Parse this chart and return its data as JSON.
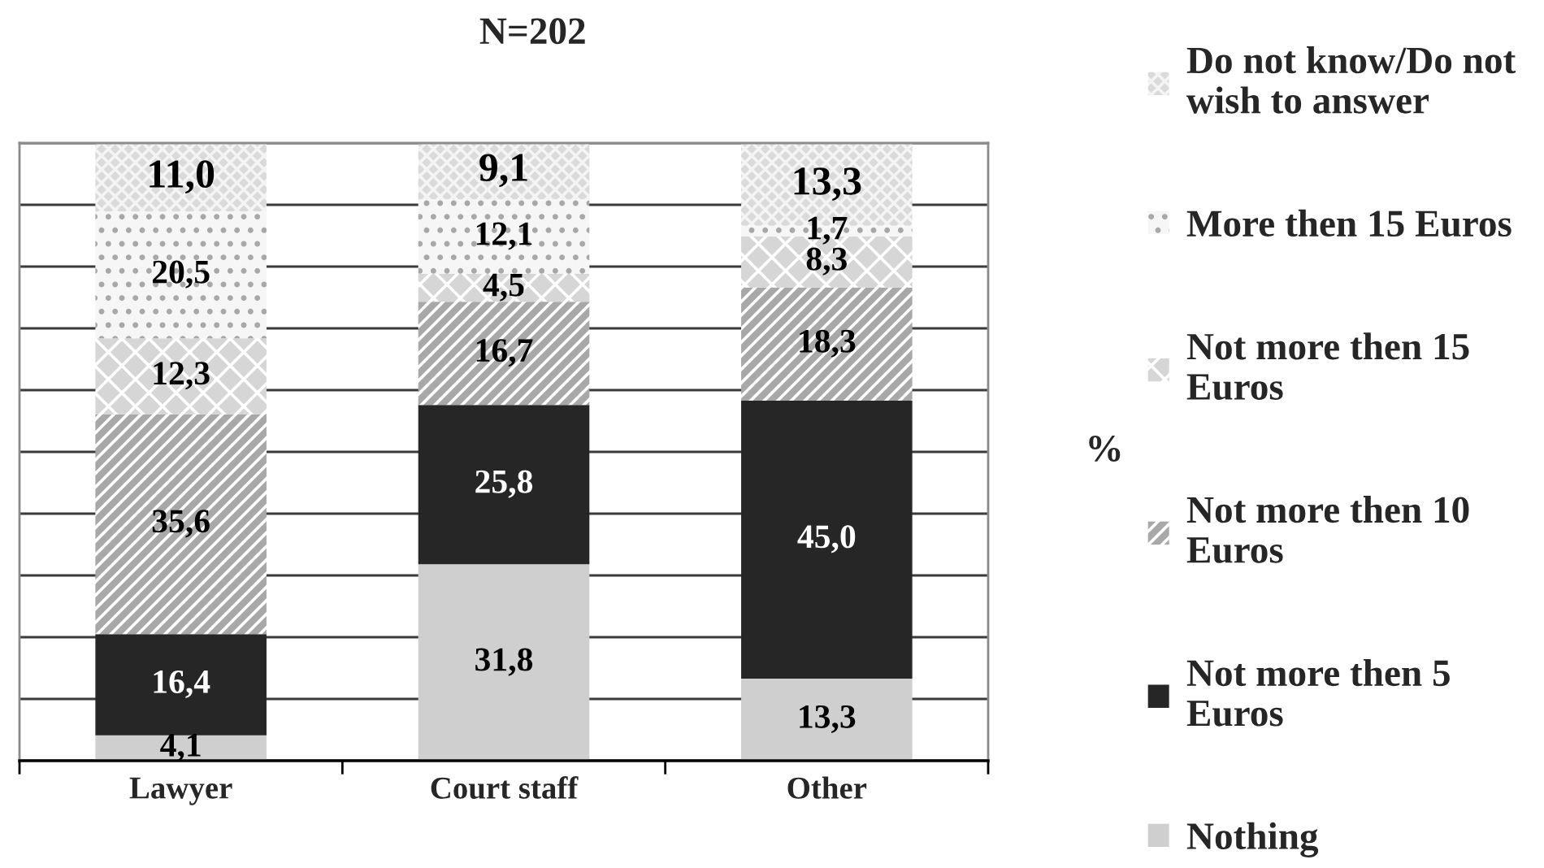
{
  "chart_data": {
    "type": "bar",
    "title": "N=202",
    "ylabel": "%",
    "categories": [
      "Lawyer",
      "Court staff",
      "Other"
    ],
    "stacked": true,
    "series": [
      {
        "name": "Nothing",
        "color": "#cfcfcf",
        "values": [
          4.1,
          31.8,
          13.3
        ],
        "value_labels": [
          "4,1",
          "31,8",
          "13,3"
        ]
      },
      {
        "name": "Not more then 5 Euros",
        "color": "#262626",
        "values": [
          16.4,
          25.8,
          45.0
        ],
        "value_labels": [
          "16,4",
          "25,8",
          "45,0"
        ]
      },
      {
        "name": "Not more then 10 Euros",
        "color": "#a8a8a8",
        "values": [
          35.6,
          16.7,
          18.3
        ],
        "value_labels": [
          "35,6",
          "16,7",
          "18,3"
        ]
      },
      {
        "name": "Not more then 15 Euros",
        "color": "#d6d6d6",
        "values": [
          12.3,
          4.5,
          8.3
        ],
        "value_labels": [
          "12,3",
          "4,5",
          "8,3"
        ]
      },
      {
        "name": "More then 15 Euros",
        "color": "#f6f6f6",
        "values": [
          20.5,
          12.1,
          1.7
        ],
        "value_labels": [
          "20,5",
          "12,1",
          "1,7"
        ]
      },
      {
        "name": "Do not know/Do not wish to answer",
        "color": "#dadada",
        "values": [
          11.0,
          9.1,
          13.3
        ],
        "value_labels": [
          "11,0",
          "9,1",
          "13,3"
        ]
      }
    ],
    "ylim": [
      0,
      100
    ],
    "yticks": [
      {
        "value": 0,
        "label": null
      },
      {
        "value": 10,
        "label": null
      },
      {
        "value": 20,
        "label": null
      },
      {
        "value": 30,
        "label": null
      },
      {
        "value": 40,
        "label": null
      },
      {
        "value": 50,
        "label": null
      },
      {
        "value": 60,
        "label": null
      },
      {
        "value": 70,
        "label": null
      },
      {
        "value": 80,
        "label": null
      },
      {
        "value": 90,
        "label": null
      },
      {
        "value": 100,
        "label": null
      }
    ],
    "grid": "y",
    "legend": "right",
    "tick_labels": "x"
  }
}
